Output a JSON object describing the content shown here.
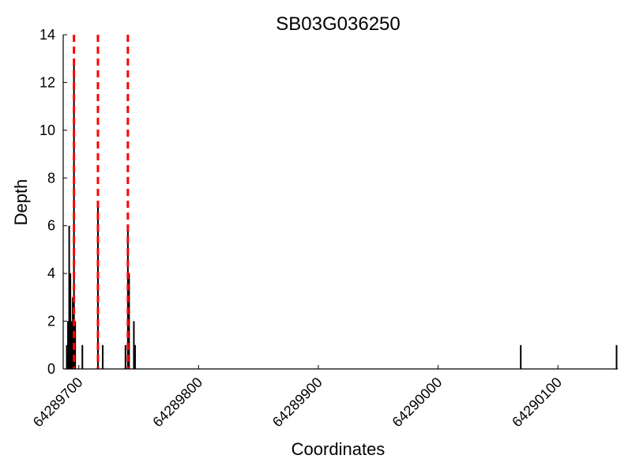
{
  "chart_data": {
    "type": "bar",
    "title": "SB03G036250",
    "xlabel": "Coordinates",
    "ylabel": "Depth",
    "xlim": [
      64289687,
      64290150
    ],
    "ylim": [
      0,
      14
    ],
    "x_ticks": [
      64289700,
      64289800,
      64289900,
      64290000,
      64290100
    ],
    "x_tick_labels": [
      "64289700",
      "64289800",
      "64289900",
      "64290000",
      "64290100"
    ],
    "y_ticks": [
      0,
      2,
      4,
      6,
      8,
      10,
      12,
      14
    ],
    "y_tick_labels": [
      "0",
      "2",
      "4",
      "6",
      "8",
      "10",
      "12",
      "14"
    ],
    "grid": false,
    "series": [
      {
        "points": [
          {
            "x": 64289690,
            "y": 1
          },
          {
            "x": 64289691,
            "y": 2
          },
          {
            "x": 64289692,
            "y": 6
          },
          {
            "x": 64289693,
            "y": 4
          },
          {
            "x": 64289694,
            "y": 2
          },
          {
            "x": 64289695,
            "y": 3
          },
          {
            "x": 64289696,
            "y": 13
          },
          {
            "x": 64289697,
            "y": 2
          },
          {
            "x": 64289694,
            "y": 1
          },
          {
            "x": 64289703,
            "y": 1
          },
          {
            "x": 64289716,
            "y": 7
          },
          {
            "x": 64289720,
            "y": 1
          },
          {
            "x": 64289739,
            "y": 1
          },
          {
            "x": 64289741,
            "y": 6
          },
          {
            "x": 64289742,
            "y": 4
          },
          {
            "x": 64289746,
            "y": 2
          },
          {
            "x": 64289747,
            "y": 1
          },
          {
            "x": 64290069,
            "y": 1
          },
          {
            "x": 64290149,
            "y": 1
          }
        ],
        "color": "#000000"
      }
    ],
    "vlines": [
      {
        "x": 64289696,
        "color": "#ff0000",
        "style": "dashed"
      },
      {
        "x": 64289716,
        "color": "#ff0000",
        "style": "dashed"
      },
      {
        "x": 64289741,
        "color": "#ff0000",
        "style": "dashed"
      }
    ]
  }
}
